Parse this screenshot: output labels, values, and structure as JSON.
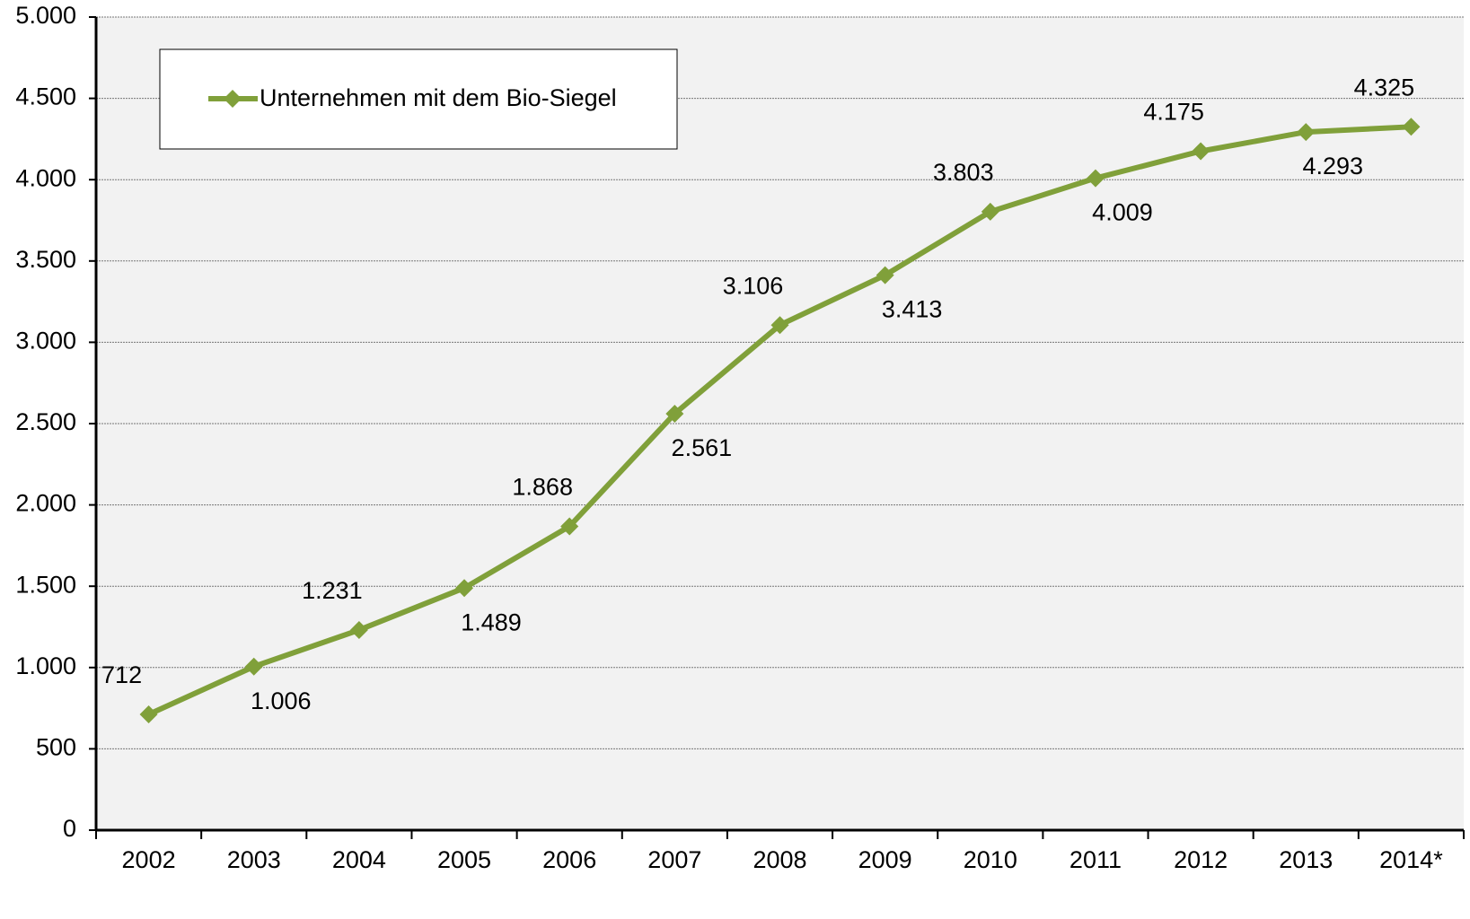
{
  "chart_data": {
    "type": "line",
    "categories": [
      "2002",
      "2003",
      "2004",
      "2005",
      "2006",
      "2007",
      "2008",
      "2009",
      "2010",
      "2011",
      "2012",
      "2013",
      "2014*"
    ],
    "series": [
      {
        "name": "Unternehmen mit dem Bio-Siegel",
        "color": "#80a03a",
        "values": [
          712,
          1006,
          1231,
          1489,
          1868,
          2561,
          3106,
          3413,
          3803,
          4009,
          4175,
          4293,
          4325
        ],
        "value_labels": [
          "712",
          "1.006",
          "1.231",
          "1.489",
          "1.868",
          "2.561",
          "3.106",
          "3.413",
          "3.803",
          "4.009",
          "4.175",
          "4.293",
          "4.325"
        ]
      }
    ],
    "ylim": [
      0,
      5000
    ],
    "yticks": [
      0,
      500,
      {
        "value": 1000,
        "label": "1.000"
      },
      {
        "value": 1500,
        "label": "1.500"
      },
      {
        "value": 2000,
        "label": "2.000"
      },
      {
        "value": 2500,
        "label": "2.500"
      },
      {
        "value": 3000,
        "label": "3.000"
      },
      {
        "value": 3500,
        "label": "3.500"
      },
      {
        "value": 4000,
        "label": "4.000"
      },
      {
        "value": 4500,
        "label": "4.500"
      },
      {
        "value": 5000,
        "label": "5.000"
      }
    ],
    "grid": true,
    "legend": "upper left"
  }
}
